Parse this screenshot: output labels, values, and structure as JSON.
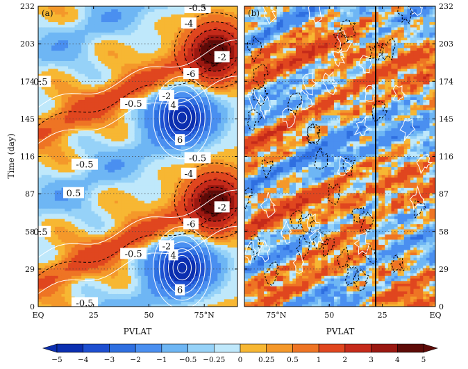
{
  "chart_data": [
    {
      "type": "heatmap",
      "panel_label": "(a)",
      "xlabel": "PVLAT",
      "ylabel": "Time (day)",
      "x_tick_labels": [
        "EQ",
        "25",
        "50",
        "75°N"
      ],
      "x_tick_values": [
        0,
        25,
        50,
        75
      ],
      "xlim": [
        0,
        90
      ],
      "y_tick_labels": [
        "0",
        "29",
        "58",
        "87",
        "116",
        "145",
        "174",
        "203",
        "232"
      ],
      "y_tick_values": [
        0,
        29,
        58,
        87,
        116,
        145,
        174,
        203,
        232
      ],
      "ylim": [
        0,
        232
      ],
      "period_days": 116,
      "field_peaks": [
        {
          "lat": 65,
          "day": 30,
          "value": -5
        },
        {
          "lat": 78,
          "day": 82,
          "value": 4.5
        },
        {
          "lat": 15,
          "day": 28,
          "value": 0.5
        },
        {
          "lat": 18,
          "day": 52,
          "value": 1.5
        }
      ],
      "contour_labels": [
        "-0.5",
        "-4",
        "-2",
        "-6",
        "-0.5",
        "-2",
        "4",
        "6",
        "-0.5",
        "0.5",
        "0.5",
        "-0.5",
        "-4",
        "-2",
        "-6",
        "-0.5",
        "-2",
        "4",
        "6",
        "-0.5",
        "0.5"
      ],
      "contour_label_positions": [
        {
          "lat": 72,
          "day": 231
        },
        {
          "lat": 68,
          "day": 219
        },
        {
          "lat": 83,
          "day": 193
        },
        {
          "lat": 69,
          "day": 180
        },
        {
          "lat": 43,
          "day": 157
        },
        {
          "lat": 58,
          "day": 163
        },
        {
          "lat": 61,
          "day": 156
        },
        {
          "lat": 64,
          "day": 129
        },
        {
          "lat": 21,
          "day": 110
        },
        {
          "lat": 16,
          "day": 88
        },
        {
          "lat": 1,
          "day": 174
        },
        {
          "lat": 72,
          "day": 115
        },
        {
          "lat": 68,
          "day": 103
        },
        {
          "lat": 83,
          "day": 77
        },
        {
          "lat": 69,
          "day": 64
        },
        {
          "lat": 43,
          "day": 41
        },
        {
          "lat": 58,
          "day": 47
        },
        {
          "lat": 61,
          "day": 40
        },
        {
          "lat": 64,
          "day": 13
        },
        {
          "lat": 21,
          "day": 3
        },
        {
          "lat": 1,
          "day": 58
        }
      ]
    },
    {
      "type": "heatmap",
      "panel_label": "(b)",
      "xlabel": "PVLAT",
      "ylabel": "",
      "x_tick_labels": [
        "75°N",
        "50",
        "25",
        "EQ"
      ],
      "x_tick_values": [
        75,
        50,
        25,
        0
      ],
      "xlim": [
        90,
        0
      ],
      "y_tick_labels": [
        "0",
        "29",
        "58",
        "87",
        "116",
        "145",
        "174",
        "203",
        "232"
      ],
      "y_tick_values": [
        0,
        29,
        58,
        87,
        116,
        145,
        174,
        203,
        232
      ],
      "ylim": [
        0,
        232
      ],
      "period_days": 116
    }
  ],
  "colorbar": {
    "levels": [
      "-5",
      "-4",
      "-3",
      "-2",
      "-1",
      "-0.5",
      "-0.25",
      "0",
      "0.25",
      "0.5",
      "1",
      "2",
      "3",
      "4",
      "5"
    ],
    "colors": [
      "#0b2fb0",
      "#1e4fd0",
      "#2f6fe0",
      "#4a8ff0",
      "#6eb6f4",
      "#96d2f8",
      "#bfe8fb",
      "#f7b733",
      "#f4982a",
      "#ee7424",
      "#e0461f",
      "#c52a1a",
      "#9a1811",
      "#5e0b08"
    ],
    "extend": "both"
  },
  "colors": {
    "contour_positive": "#ffffff",
    "contour_negative": "#000000",
    "grid_dotted": "#444444"
  }
}
